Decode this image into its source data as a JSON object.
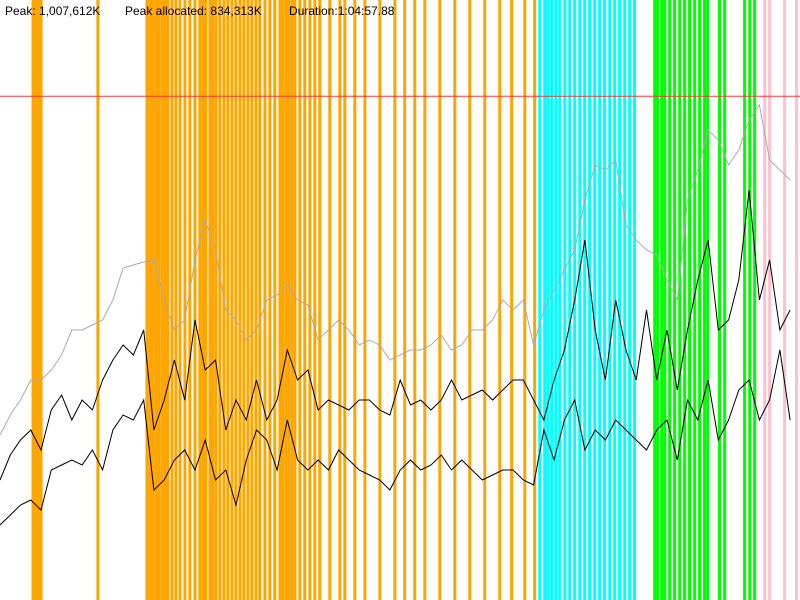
{
  "chart_data": {
    "type": "line",
    "header": {
      "peak": "Peak: 1,007,612K",
      "peak_allocated": "Peak allocated: 834,313K",
      "duration": "Duration:1:04:57.88"
    },
    "xlim": [
      0,
      3898
    ],
    "ylim": [
      0,
      1200000
    ],
    "peak_line": {
      "value": 1007612,
      "color": "#ff3333"
    },
    "x": [
      0,
      50,
      100,
      150,
      200,
      250,
      300,
      350,
      400,
      450,
      500,
      550,
      600,
      650,
      700,
      750,
      800,
      850,
      900,
      950,
      1000,
      1050,
      1100,
      1150,
      1200,
      1250,
      1300,
      1350,
      1400,
      1450,
      1500,
      1550,
      1600,
      1650,
      1700,
      1750,
      1800,
      1850,
      1900,
      1950,
      2000,
      2050,
      2100,
      2150,
      2200,
      2250,
      2300,
      2350,
      2400,
      2450,
      2500,
      2550,
      2600,
      2650,
      2700,
      2750,
      2800,
      2850,
      2900,
      2950,
      3000,
      3050,
      3100,
      3150,
      3200,
      3250,
      3300,
      3350,
      3400,
      3450,
      3500,
      3550,
      3600,
      3650,
      3700,
      3750,
      3800,
      3850
    ],
    "series": [
      {
        "color": "#aaaaaa",
        "values": [
          330000,
          370000,
          400000,
          440000,
          440000,
          460000,
          490000,
          540000,
          540000,
          550000,
          560000,
          600000,
          664000,
          670000,
          676000,
          680000,
          600000,
          540000,
          560000,
          680000,
          760000,
          700000,
          580000,
          560000,
          520000,
          540000,
          600000,
          610000,
          630000,
          600000,
          590000,
          520000,
          540000,
          560000,
          540000,
          510000,
          520000,
          510000,
          480000,
          490000,
          500000,
          500000,
          510000,
          530000,
          500000,
          510000,
          540000,
          540000,
          560000,
          600000,
          580000,
          600000,
          510000,
          580000,
          620000,
          660000,
          700000,
          800000,
          870000,
          860000,
          880000,
          750000,
          720000,
          700000,
          690000,
          640000,
          600000,
          800000,
          860000,
          940000,
          920000,
          870000,
          900000,
          960000,
          990000,
          880000,
          860000,
          840000
        ]
      },
      {
        "color": "#000000",
        "values": [
          240000,
          290000,
          320000,
          340000,
          300000,
          380000,
          410000,
          360000,
          400000,
          380000,
          440000,
          480000,
          510000,
          490000,
          540000,
          340000,
          400000,
          480000,
          400000,
          560000,
          460000,
          480000,
          340000,
          400000,
          360000,
          440000,
          360000,
          400000,
          500000,
          440000,
          460000,
          380000,
          400000,
          390000,
          380000,
          400000,
          400000,
          380000,
          370000,
          440000,
          390000,
          400000,
          380000,
          400000,
          440000,
          400000,
          410000,
          420000,
          400000,
          420000,
          440000,
          440000,
          400000,
          360000,
          440000,
          500000,
          600000,
          720000,
          540000,
          440000,
          600000,
          500000,
          440000,
          580000,
          440000,
          540000,
          420000,
          540000,
          640000,
          720000,
          540000,
          560000,
          640000,
          820000,
          600000,
          680000,
          540000,
          580000
        ]
      },
      {
        "color": "#000000",
        "values": [
          150000,
          170000,
          190000,
          200000,
          180000,
          260000,
          270000,
          280000,
          270000,
          300000,
          260000,
          340000,
          370000,
          360000,
          400000,
          220000,
          240000,
          280000,
          300000,
          260000,
          320000,
          240000,
          260000,
          190000,
          280000,
          340000,
          320000,
          260000,
          360000,
          280000,
          260000,
          280000,
          260000,
          300000,
          280000,
          260000,
          250000,
          240000,
          220000,
          260000,
          280000,
          260000,
          270000,
          290000,
          260000,
          280000,
          260000,
          240000,
          250000,
          260000,
          260000,
          240000,
          230000,
          340000,
          280000,
          360000,
          400000,
          300000,
          340000,
          320000,
          360000,
          340000,
          320000,
          300000,
          340000,
          360000,
          280000,
          400000,
          360000,
          440000,
          320000,
          360000,
          420000,
          440000,
          360000,
          400000,
          500000,
          360000
        ]
      }
    ],
    "events": [
      {
        "color": "#ffa500",
        "x": [
          161,
          171,
          180,
          190,
          200,
          477,
          716,
          731,
          745,
          760,
          774,
          789,
          804,
          818,
          838,
          857,
          877,
          901,
          925,
          950,
          974,
          989,
          1003,
          1023,
          1037,
          1052,
          1071,
          1091,
          1110,
          1130,
          1149,
          1169,
          1188,
          1208,
          1227,
          1247,
          1266,
          1291,
          1315,
          1339,
          1364,
          1378,
          1393,
          1407,
          1422,
          1437,
          1461,
          1485,
          1510,
          1534,
          1558,
          1607,
          1656,
          1680,
          1729,
          1778,
          1851,
          1924,
          1972,
          2021,
          2070,
          2143,
          2216,
          2289,
          2362,
          2435,
          2493,
          2557,
          2605
        ]
      },
      {
        "color": "#00ffff",
        "x": [
          2630,
          2654,
          2669,
          2688,
          2708,
          2727,
          2752,
          2776,
          2800,
          2825,
          2849,
          2873,
          2898,
          2922,
          2946,
          2971,
          2995,
          3019,
          3044,
          3068,
          3092
        ]
      },
      {
        "color": "#00ff00",
        "x": [
          3190,
          3204,
          3224,
          3239,
          3263,
          3287,
          3312,
          3336,
          3360,
          3385,
          3409,
          3433,
          3448,
          3506,
          3531,
          3628,
          3653,
          3677
        ]
      },
      {
        "color": "#ffc0cb",
        "x": [
          3726,
          3750,
          3823,
          3881
        ]
      }
    ]
  }
}
